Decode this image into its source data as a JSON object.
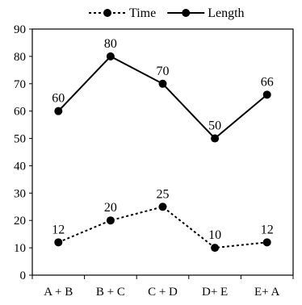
{
  "chart_data": {
    "type": "line",
    "categories": [
      "A + B",
      "B + C",
      "C + D",
      "D+ E",
      "E+ A"
    ],
    "series": [
      {
        "name": "Time",
        "values": [
          12,
          20,
          25,
          10,
          12
        ],
        "line_style": "dashed",
        "color": "#000000",
        "marker": "circle"
      },
      {
        "name": "Length",
        "values": [
          60,
          80,
          70,
          50,
          66
        ],
        "line_style": "solid",
        "color": "#000000",
        "marker": "circle"
      }
    ],
    "ylim": [
      0,
      90
    ],
    "yticks": [
      0,
      10,
      20,
      30,
      40,
      50,
      60,
      70,
      80,
      90
    ],
    "grid": false,
    "legend_position": "top",
    "data_labels": true,
    "title": "",
    "xlabel": "",
    "ylabel": ""
  }
}
